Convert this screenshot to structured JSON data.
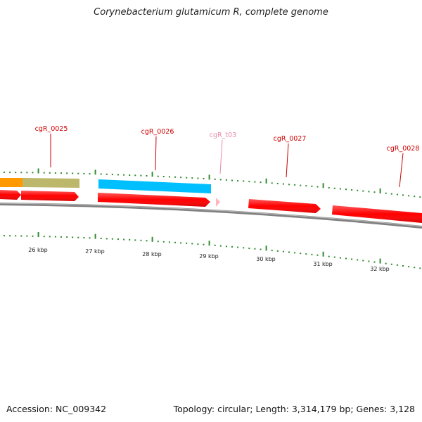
{
  "title": "Corynebacterium glutamicum R, complete genome",
  "footer": {
    "accession_label": "Accession: ",
    "accession": "NC_009342",
    "topology_label": "Topology: ",
    "topology": "circular",
    "length_label": "Length: ",
    "length": "3,314,179 bp",
    "genes_label": "Genes: ",
    "genes": "3,128"
  },
  "colors": {
    "cds": "#ff0000",
    "trna": "#ffb6c1",
    "gene_label": "#cc0000",
    "trna_label": "#e88aa6",
    "tick": "#2f8a2f",
    "backbone": "#808080",
    "feature_orange": "#ff9900",
    "feature_khaki": "#bdb76b",
    "feature_cyan": "#00bfff"
  },
  "kbp_labels": [
    "26 kbp",
    "27 kbp",
    "28 kbp",
    "29 kbp",
    "30 kbp",
    "31 kbp",
    "32 kbp"
  ],
  "gene_labels": [
    {
      "name": "cgR_0025",
      "kind": "cds"
    },
    {
      "name": "cgR_0026",
      "kind": "cds"
    },
    {
      "name": "cgR_t03",
      "kind": "trna"
    },
    {
      "name": "cgR_0027",
      "kind": "cds"
    },
    {
      "name": "cgR_0028",
      "kind": "cds"
    }
  ]
}
